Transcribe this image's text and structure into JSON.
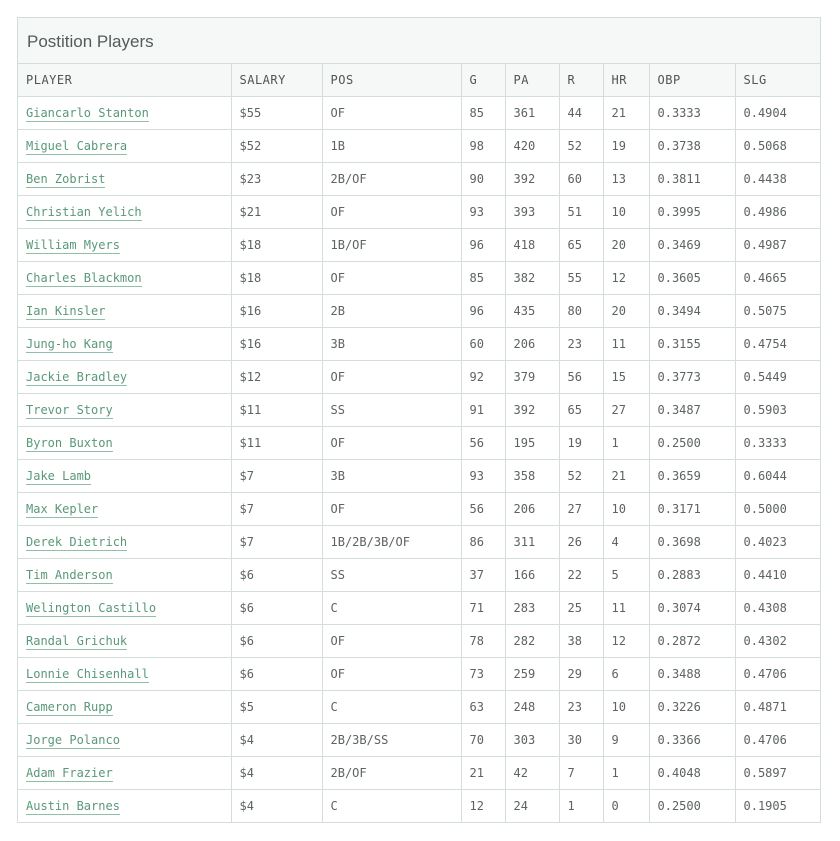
{
  "title": "Postition Players",
  "columns": [
    "PLAYER",
    "SALARY",
    "POS",
    "G",
    "PA",
    "R",
    "HR",
    "OBP",
    "SLG"
  ],
  "rows": [
    {
      "player": "Giancarlo Stanton",
      "salary": "$55",
      "pos": "OF",
      "g": "85",
      "pa": "361",
      "r": "44",
      "hr": "21",
      "obp": "0.3333",
      "slg": "0.4904"
    },
    {
      "player": "Miguel Cabrera",
      "salary": "$52",
      "pos": "1B",
      "g": "98",
      "pa": "420",
      "r": "52",
      "hr": "19",
      "obp": "0.3738",
      "slg": "0.5068"
    },
    {
      "player": "Ben Zobrist",
      "salary": "$23",
      "pos": "2B/OF",
      "g": "90",
      "pa": "392",
      "r": "60",
      "hr": "13",
      "obp": "0.3811",
      "slg": "0.4438"
    },
    {
      "player": "Christian Yelich",
      "salary": "$21",
      "pos": "OF",
      "g": "93",
      "pa": "393",
      "r": "51",
      "hr": "10",
      "obp": "0.3995",
      "slg": "0.4986"
    },
    {
      "player": "William Myers",
      "salary": "$18",
      "pos": "1B/OF",
      "g": "96",
      "pa": "418",
      "r": "65",
      "hr": "20",
      "obp": "0.3469",
      "slg": "0.4987"
    },
    {
      "player": "Charles Blackmon",
      "salary": "$18",
      "pos": "OF",
      "g": "85",
      "pa": "382",
      "r": "55",
      "hr": "12",
      "obp": "0.3605",
      "slg": "0.4665"
    },
    {
      "player": "Ian Kinsler",
      "salary": "$16",
      "pos": "2B",
      "g": "96",
      "pa": "435",
      "r": "80",
      "hr": "20",
      "obp": "0.3494",
      "slg": "0.5075"
    },
    {
      "player": "Jung-ho Kang",
      "salary": "$16",
      "pos": "3B",
      "g": "60",
      "pa": "206",
      "r": "23",
      "hr": "11",
      "obp": "0.3155",
      "slg": "0.4754"
    },
    {
      "player": "Jackie Bradley",
      "salary": "$12",
      "pos": "OF",
      "g": "92",
      "pa": "379",
      "r": "56",
      "hr": "15",
      "obp": "0.3773",
      "slg": "0.5449"
    },
    {
      "player": "Trevor Story",
      "salary": "$11",
      "pos": "SS",
      "g": "91",
      "pa": "392",
      "r": "65",
      "hr": "27",
      "obp": "0.3487",
      "slg": "0.5903"
    },
    {
      "player": "Byron Buxton",
      "salary": "$11",
      "pos": "OF",
      "g": "56",
      "pa": "195",
      "r": "19",
      "hr": "1",
      "obp": "0.2500",
      "slg": "0.3333"
    },
    {
      "player": "Jake Lamb",
      "salary": "$7",
      "pos": "3B",
      "g": "93",
      "pa": "358",
      "r": "52",
      "hr": "21",
      "obp": "0.3659",
      "slg": "0.6044"
    },
    {
      "player": "Max Kepler",
      "salary": "$7",
      "pos": "OF",
      "g": "56",
      "pa": "206",
      "r": "27",
      "hr": "10",
      "obp": "0.3171",
      "slg": "0.5000"
    },
    {
      "player": "Derek Dietrich",
      "salary": "$7",
      "pos": "1B/2B/3B/OF",
      "g": "86",
      "pa": "311",
      "r": "26",
      "hr": "4",
      "obp": "0.3698",
      "slg": "0.4023"
    },
    {
      "player": "Tim Anderson",
      "salary": "$6",
      "pos": "SS",
      "g": "37",
      "pa": "166",
      "r": "22",
      "hr": "5",
      "obp": "0.2883",
      "slg": "0.4410"
    },
    {
      "player": "Welington Castillo",
      "salary": "$6",
      "pos": "C",
      "g": "71",
      "pa": "283",
      "r": "25",
      "hr": "11",
      "obp": "0.3074",
      "slg": "0.4308"
    },
    {
      "player": "Randal Grichuk",
      "salary": "$6",
      "pos": "OF",
      "g": "78",
      "pa": "282",
      "r": "38",
      "hr": "12",
      "obp": "0.2872",
      "slg": "0.4302"
    },
    {
      "player": "Lonnie Chisenhall",
      "salary": "$6",
      "pos": "OF",
      "g": "73",
      "pa": "259",
      "r": "29",
      "hr": "6",
      "obp": "0.3488",
      "slg": "0.4706"
    },
    {
      "player": "Cameron Rupp",
      "salary": "$5",
      "pos": "C",
      "g": "63",
      "pa": "248",
      "r": "23",
      "hr": "10",
      "obp": "0.3226",
      "slg": "0.4871"
    },
    {
      "player": "Jorge Polanco",
      "salary": "$4",
      "pos": "2B/3B/SS",
      "g": "70",
      "pa": "303",
      "r": "30",
      "hr": "9",
      "obp": "0.3366",
      "slg": "0.4706"
    },
    {
      "player": "Adam Frazier",
      "salary": "$4",
      "pos": "2B/OF",
      "g": "21",
      "pa": "42",
      "r": "7",
      "hr": "1",
      "obp": "0.4048",
      "slg": "0.5897"
    },
    {
      "player": "Austin Barnes",
      "salary": "$4",
      "pos": "C",
      "g": "12",
      "pa": "24",
      "r": "1",
      "hr": "0",
      "obp": "0.2500",
      "slg": "0.1905"
    }
  ]
}
